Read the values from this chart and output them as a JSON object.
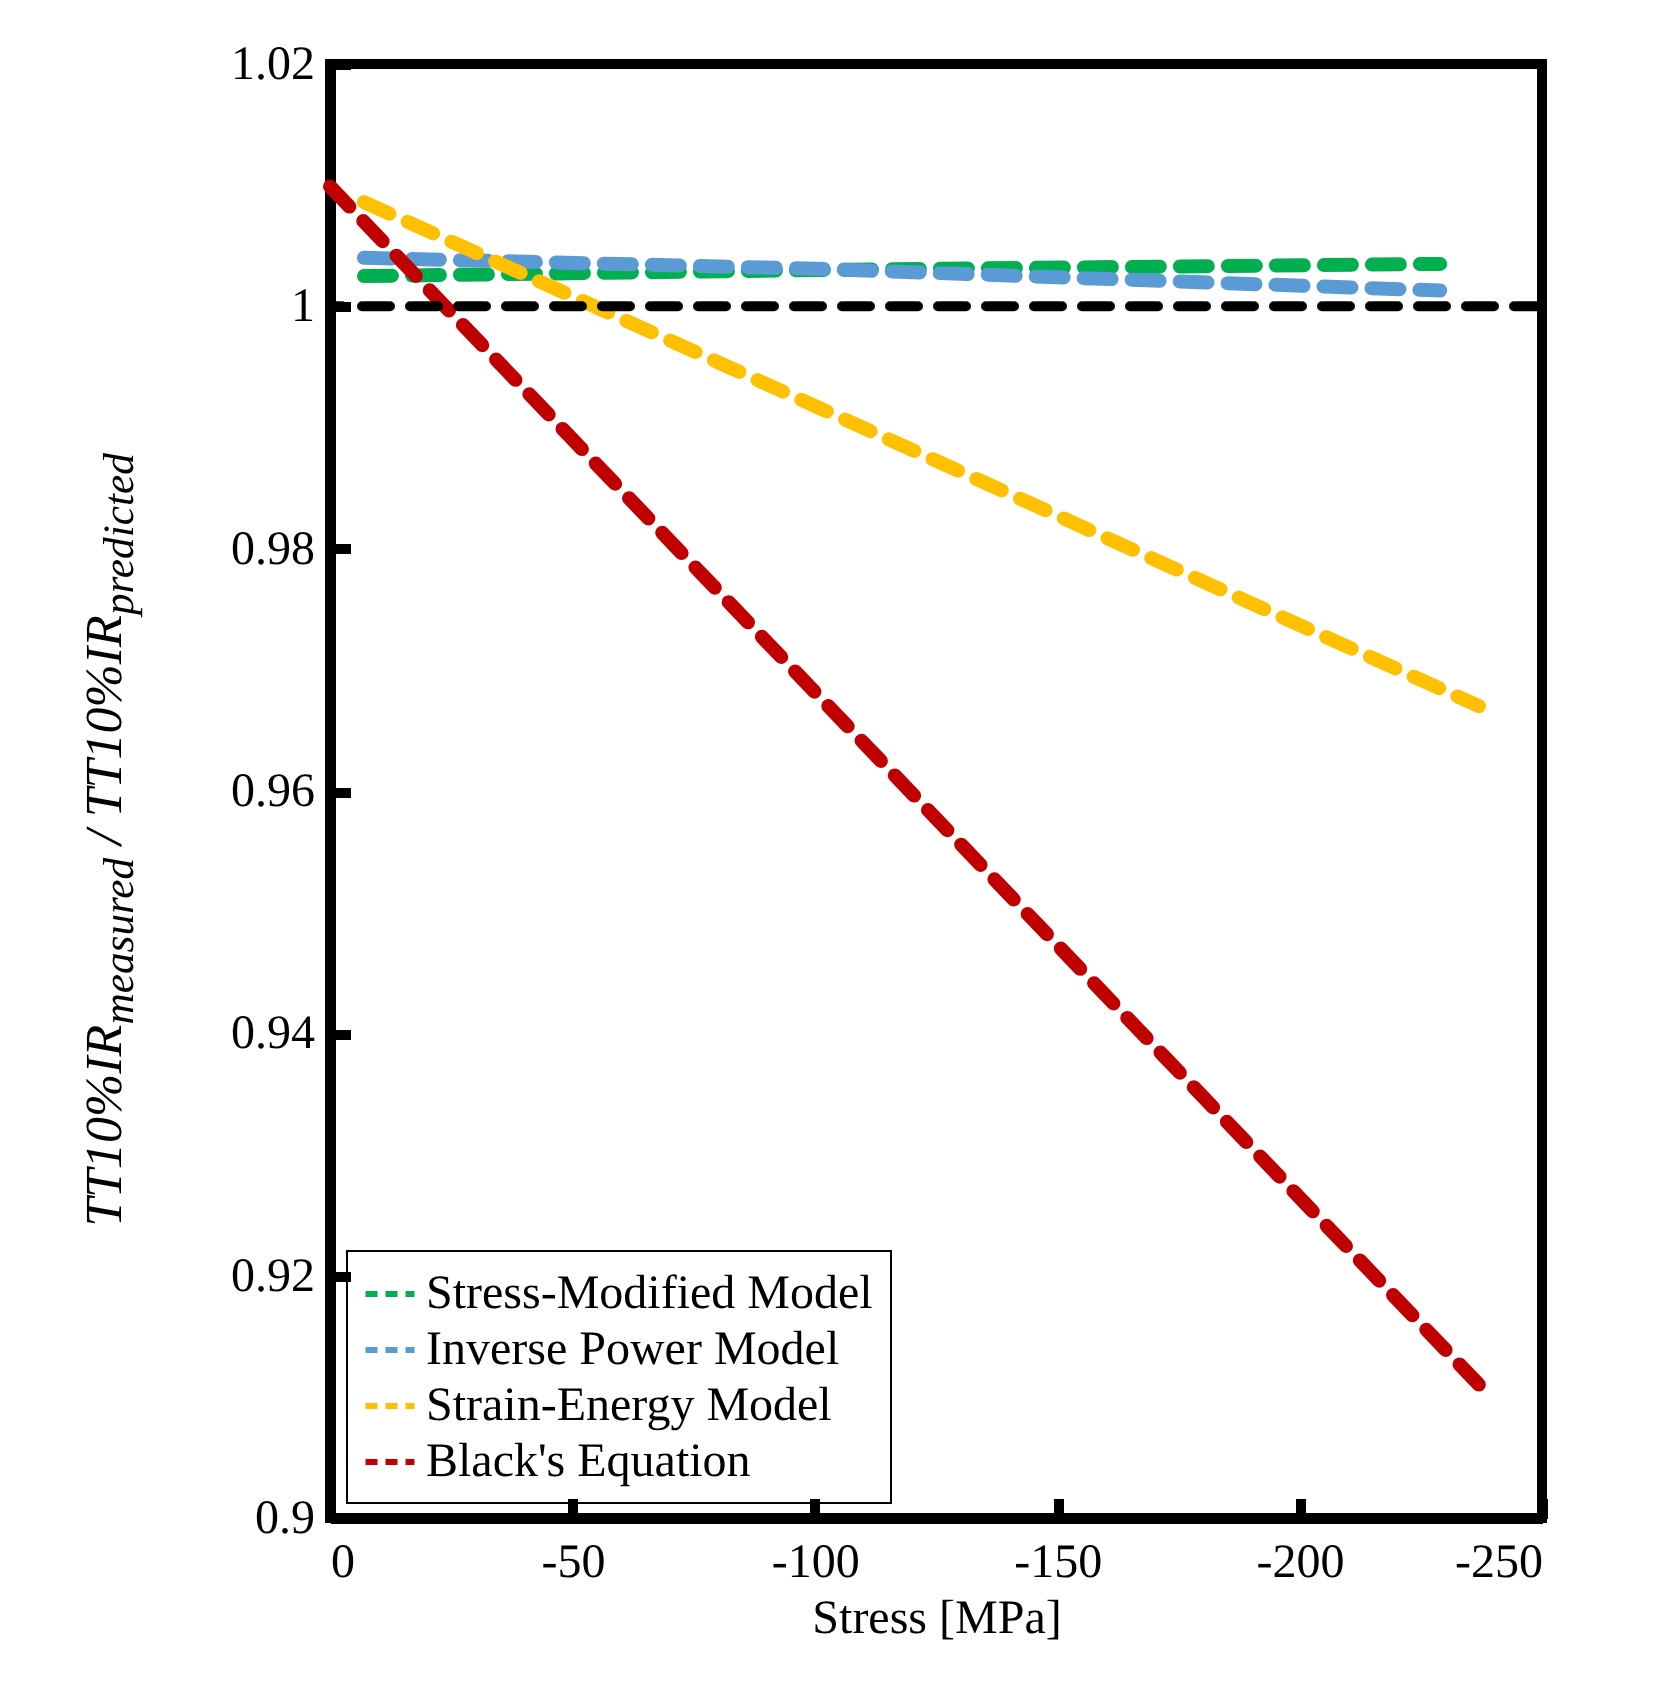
{
  "chart_data": {
    "type": "line",
    "xlabel": "Stress [MPa]",
    "ylabel": "TT10%IR$_{measured}$ / TT10%IR$_{predicted}$",
    "xlim": [
      0,
      -250
    ],
    "xticks": [
      0,
      -50,
      -100,
      -150,
      -200,
      -250
    ],
    "ylim": [
      0.9,
      1.02
    ],
    "yticks": [
      0.9,
      0.92,
      0.94,
      0.96,
      0.98,
      1,
      1.02
    ],
    "grid": false,
    "legend": "bottom left",
    "line_style": "dashed",
    "marker": "none",
    "series": [
      {
        "name": "Stress-Modified Model",
        "color": "#00b050",
        "x": [
          -7,
          -100,
          -229
        ],
        "values": [
          1.0025,
          1.003,
          1.0035
        ]
      },
      {
        "name": "Inverse Power Model",
        "color": "#5b9bd5",
        "x": [
          -7,
          -100,
          -229
        ],
        "values": [
          1.004,
          1.0031,
          1.0013
        ]
      },
      {
        "name": "Strain-Energy Model",
        "color": "#ffc000",
        "x": [
          -7,
          -237
        ],
        "values": [
          1.0086,
          0.967
        ]
      },
      {
        "name": "Black's Equation",
        "color": "#c00000",
        "x": [
          0,
          -237
        ],
        "values": [
          1.0099,
          0.911
        ]
      }
    ],
    "ref_lines": [
      {
        "axis": "y",
        "value": 1,
        "color": "#000000",
        "line_style": "dashed"
      }
    ]
  }
}
